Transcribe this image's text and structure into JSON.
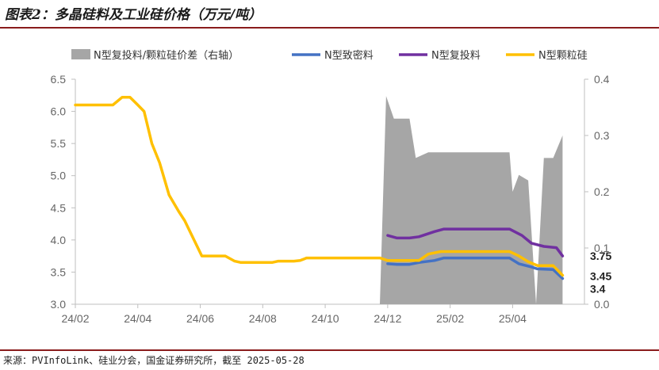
{
  "header": {
    "title": "图表2：多晶硅料及工业硅价格（万元/吨）"
  },
  "footer": {
    "source": "来源：PVInfoLink、硅业分会，国金证券研究所，截至 2025-05-28"
  },
  "colors": {
    "spread": "#a6a6a6",
    "dense": "#4472c4",
    "recharge": "#7030a0",
    "granular": "#ffc000",
    "accent": "#8a1c1c"
  },
  "chart_data": {
    "type": "line",
    "title": "多晶硅料及工业硅价格（万元/吨）",
    "legend_position": "top",
    "x_range": [
      0,
      16.3
    ],
    "x_ticks": [
      {
        "label": "24/02",
        "x": 0
      },
      {
        "label": "24/04",
        "x": 2
      },
      {
        "label": "24/06",
        "x": 4
      },
      {
        "label": "24/08",
        "x": 6
      },
      {
        "label": "24/10",
        "x": 8
      },
      {
        "label": "24/12",
        "x": 10
      },
      {
        "label": "25/02",
        "x": 12
      },
      {
        "label": "25/04",
        "x": 14
      }
    ],
    "y_left": {
      "range": [
        3.0,
        6.5
      ],
      "ticks": [
        "3.0",
        "3.5",
        "4.0",
        "4.5",
        "5.0",
        "5.5",
        "6.0",
        "6.5"
      ]
    },
    "y_right": {
      "range": [
        0.0,
        0.4
      ],
      "ticks": [
        "0.0",
        "0.1",
        "0.2",
        "0.3",
        "0.4"
      ]
    },
    "series": [
      {
        "name": "N型复投料/颗粒硅价差（右轴）",
        "kind": "area",
        "axis": "right",
        "color": "#a6a6a6",
        "points": [
          [
            9.75,
            0
          ],
          [
            9.95,
            0.37
          ],
          [
            10.2,
            0.33
          ],
          [
            10.7,
            0.33
          ],
          [
            10.9,
            0.26
          ],
          [
            11.3,
            0.27
          ],
          [
            11.8,
            0.27
          ],
          [
            12.5,
            0.27
          ],
          [
            13.2,
            0.27
          ],
          [
            13.9,
            0.27
          ],
          [
            14.0,
            0.2
          ],
          [
            14.2,
            0.23
          ],
          [
            14.5,
            0.22
          ],
          [
            14.75,
            0
          ],
          [
            15.0,
            0.26
          ],
          [
            15.3,
            0.26
          ],
          [
            15.6,
            0.3
          ],
          [
            15.6,
            0
          ],
          [
            9.75,
            0
          ]
        ]
      },
      {
        "name": "N型致密料",
        "kind": "line",
        "axis": "left",
        "color": "#4472c4",
        "points": [
          [
            10.0,
            3.63
          ],
          [
            10.3,
            3.62
          ],
          [
            10.7,
            3.62
          ],
          [
            11.0,
            3.65
          ],
          [
            11.5,
            3.68
          ],
          [
            11.8,
            3.72
          ],
          [
            12.5,
            3.72
          ],
          [
            13.0,
            3.72
          ],
          [
            13.6,
            3.72
          ],
          [
            13.9,
            3.72
          ],
          [
            14.2,
            3.63
          ],
          [
            14.6,
            3.58
          ],
          [
            14.8,
            3.55
          ],
          [
            15.3,
            3.54
          ],
          [
            15.6,
            3.4
          ]
        ]
      },
      {
        "name": "N型复投料",
        "kind": "line",
        "axis": "left",
        "color": "#7030a0",
        "points": [
          [
            10.0,
            4.07
          ],
          [
            10.3,
            4.03
          ],
          [
            10.7,
            4.03
          ],
          [
            11.0,
            4.05
          ],
          [
            11.5,
            4.13
          ],
          [
            11.8,
            4.17
          ],
          [
            12.5,
            4.17
          ],
          [
            13.0,
            4.17
          ],
          [
            13.6,
            4.17
          ],
          [
            13.9,
            4.17
          ],
          [
            14.3,
            4.07
          ],
          [
            14.6,
            3.95
          ],
          [
            15.0,
            3.9
          ],
          [
            15.4,
            3.88
          ],
          [
            15.6,
            3.75
          ]
        ]
      },
      {
        "name": "N型颗粒硅",
        "kind": "line",
        "axis": "left",
        "color": "#ffc000",
        "points": [
          [
            0.0,
            6.1
          ],
          [
            0.5,
            6.1
          ],
          [
            1.0,
            6.1
          ],
          [
            1.2,
            6.1
          ],
          [
            1.5,
            6.22
          ],
          [
            1.75,
            6.22
          ],
          [
            2.0,
            6.1
          ],
          [
            2.2,
            6.0
          ],
          [
            2.45,
            5.5
          ],
          [
            2.7,
            5.2
          ],
          [
            3.0,
            4.7
          ],
          [
            3.3,
            4.45
          ],
          [
            3.5,
            4.3
          ],
          [
            3.8,
            4.0
          ],
          [
            4.05,
            3.75
          ],
          [
            4.3,
            3.75
          ],
          [
            4.8,
            3.75
          ],
          [
            5.1,
            3.67
          ],
          [
            5.3,
            3.65
          ],
          [
            5.8,
            3.65
          ],
          [
            6.3,
            3.65
          ],
          [
            6.5,
            3.67
          ],
          [
            7.0,
            3.67
          ],
          [
            7.2,
            3.68
          ],
          [
            7.4,
            3.72
          ],
          [
            7.8,
            3.72
          ],
          [
            8.3,
            3.72
          ],
          [
            8.8,
            3.72
          ],
          [
            9.3,
            3.72
          ],
          [
            9.75,
            3.72
          ],
          [
            10.0,
            3.68
          ],
          [
            10.5,
            3.68
          ],
          [
            11.0,
            3.68
          ],
          [
            11.3,
            3.78
          ],
          [
            11.7,
            3.82
          ],
          [
            12.0,
            3.82
          ],
          [
            12.5,
            3.82
          ],
          [
            13.0,
            3.82
          ],
          [
            13.5,
            3.82
          ],
          [
            13.9,
            3.82
          ],
          [
            14.2,
            3.75
          ],
          [
            14.5,
            3.66
          ],
          [
            14.8,
            3.6
          ],
          [
            15.3,
            3.6
          ],
          [
            15.6,
            3.45
          ]
        ]
      }
    ],
    "end_labels": [
      {
        "text": "3.75",
        "series": "N型复投料",
        "value": 3.75
      },
      {
        "text": "3.45",
        "series": "N型颗粒硅",
        "value": 3.45
      },
      {
        "text": "3.4",
        "series": "N型致密料",
        "value": 3.4
      }
    ]
  }
}
